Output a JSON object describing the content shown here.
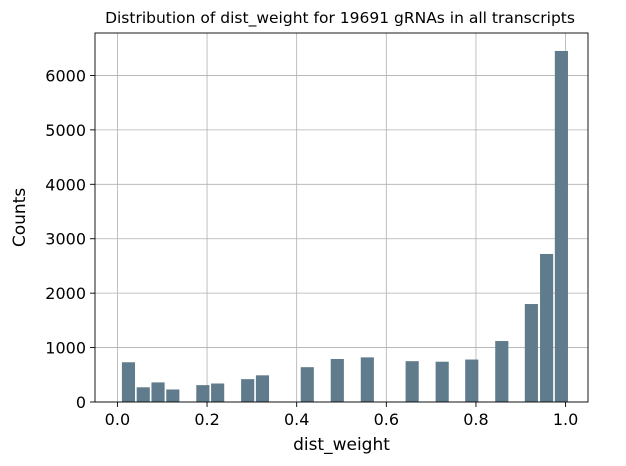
{
  "chart_data": {
    "type": "bar",
    "title": "Distribution of dist_weight for 19691 gRNAs in all transcripts",
    "xlabel": "dist_weight",
    "ylabel": "Counts",
    "xlim": [
      -0.05,
      1.05
    ],
    "ylim": [
      0,
      6780
    ],
    "xticks": [
      0.0,
      0.2,
      0.4,
      0.6,
      0.8,
      1.0
    ],
    "xtick_labels": [
      "0.0",
      "0.2",
      "0.4",
      "0.6",
      "0.8",
      "1.0"
    ],
    "yticks": [
      0,
      1000,
      2000,
      3000,
      4000,
      5000,
      6000
    ],
    "ytick_labels": [
      "0",
      "1000",
      "2000",
      "3000",
      "4000",
      "5000",
      "6000"
    ],
    "grid": true,
    "bar_color": "#607b8b",
    "bin_width": 0.0333,
    "bars": [
      {
        "x": 0.01,
        "value": 730
      },
      {
        "x": 0.043,
        "value": 270
      },
      {
        "x": 0.076,
        "value": 360
      },
      {
        "x": 0.109,
        "value": 230
      },
      {
        "x": 0.176,
        "value": 310
      },
      {
        "x": 0.209,
        "value": 340
      },
      {
        "x": 0.276,
        "value": 420
      },
      {
        "x": 0.309,
        "value": 490
      },
      {
        "x": 0.409,
        "value": 640
      },
      {
        "x": 0.476,
        "value": 790
      },
      {
        "x": 0.543,
        "value": 820
      },
      {
        "x": 0.643,
        "value": 750
      },
      {
        "x": 0.71,
        "value": 740
      },
      {
        "x": 0.776,
        "value": 780
      },
      {
        "x": 0.843,
        "value": 1120
      },
      {
        "x": 0.909,
        "value": 1800
      },
      {
        "x": 0.943,
        "value": 2720
      },
      {
        "x": 0.976,
        "value": 6450
      }
    ]
  }
}
